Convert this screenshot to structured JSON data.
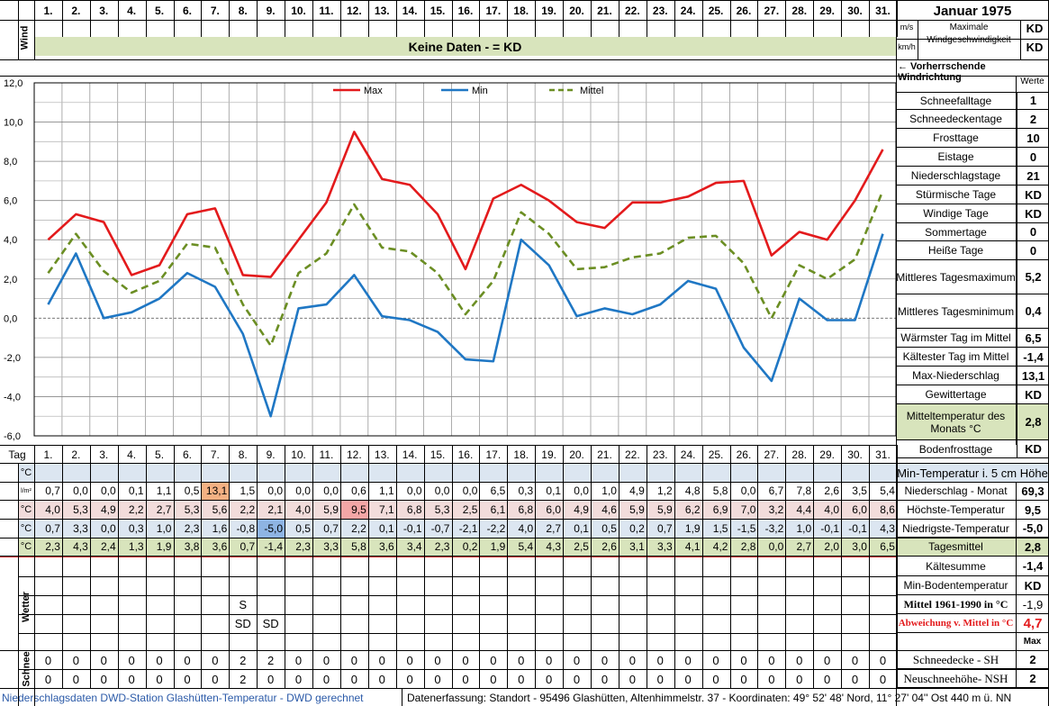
{
  "header": {
    "month_title": "Januar 1975",
    "days": [
      "1.",
      "2.",
      "3.",
      "4.",
      "5.",
      "6.",
      "7.",
      "8.",
      "9.",
      "10.",
      "11.",
      "12.",
      "13.",
      "14.",
      "15.",
      "16.",
      "17.",
      "18.",
      "19.",
      "20.",
      "21.",
      "22.",
      "23.",
      "24.",
      "25.",
      "26.",
      "27.",
      "28.",
      "29.",
      "30.",
      "31."
    ],
    "wind_label": "Wind",
    "unit_ms": "m/s",
    "unit_kmh": "km/h",
    "max_wind_label": "Maximale Windgeschwindigkeit",
    "max_wind_ms": "KD",
    "max_wind_kmh": "KD",
    "no_data_banner": "Keine Daten -  = KD",
    "prevailing_wind": "← Vorherrschende Windrichtung",
    "werte": "Werte"
  },
  "chart_data": {
    "type": "line",
    "x": [
      1,
      2,
      3,
      4,
      5,
      6,
      7,
      8,
      9,
      10,
      11,
      12,
      13,
      14,
      15,
      16,
      17,
      18,
      19,
      20,
      21,
      22,
      23,
      24,
      25,
      26,
      27,
      28,
      29,
      30,
      31
    ],
    "series": [
      {
        "name": "Max",
        "color": "#e31a1c",
        "dash": false,
        "values": [
          4.0,
          5.3,
          4.9,
          2.2,
          2.7,
          5.3,
          5.6,
          2.2,
          2.1,
          4.0,
          5.9,
          9.5,
          7.1,
          6.8,
          5.3,
          2.5,
          6.1,
          6.8,
          6.0,
          4.9,
          4.6,
          5.9,
          5.9,
          6.2,
          6.9,
          7.0,
          3.2,
          4.4,
          4.0,
          6.0,
          8.6
        ]
      },
      {
        "name": "Min",
        "color": "#1f77c4",
        "dash": false,
        "values": [
          0.7,
          3.3,
          0.0,
          0.3,
          1.0,
          2.3,
          1.6,
          -0.8,
          -5.0,
          0.5,
          0.7,
          2.2,
          0.1,
          -0.1,
          -0.7,
          -2.1,
          -2.2,
          4.0,
          2.7,
          0.1,
          0.5,
          0.2,
          0.7,
          1.9,
          1.5,
          -1.5,
          -3.2,
          1.0,
          -0.1,
          -0.1,
          4.3
        ]
      },
      {
        "name": "Mittel",
        "color": "#6b8e23",
        "dash": true,
        "values": [
          2.3,
          4.3,
          2.4,
          1.3,
          1.9,
          3.8,
          3.6,
          0.7,
          -1.4,
          2.3,
          3.3,
          5.8,
          3.6,
          3.4,
          2.3,
          0.2,
          1.9,
          5.4,
          4.3,
          2.5,
          2.6,
          3.1,
          3.3,
          4.1,
          4.2,
          2.8,
          0.0,
          2.7,
          2.0,
          3.0,
          6.5
        ]
      }
    ],
    "ylim": [
      -6,
      12
    ],
    "yticks": [
      "12,0",
      "10,0",
      "8,0",
      "6,0",
      "4,0",
      "2,0",
      "0,0",
      "-2,0",
      "-4,0",
      "-6,0"
    ],
    "grid": true,
    "legend": "top-center"
  },
  "table": {
    "tag_label": "Tag",
    "units": [
      "°C",
      "l/m²",
      "°C",
      "°C",
      "°C"
    ],
    "rows": {
      "niederschlag": [
        "0,7",
        "0,0",
        "0,0",
        "0,1",
        "1,1",
        "0,5",
        "13,1",
        "1,5",
        "0,0",
        "0,0",
        "0,0",
        "0,6",
        "1,1",
        "0,0",
        "0,0",
        "0,0",
        "6,5",
        "0,3",
        "0,1",
        "0,0",
        "1,0",
        "4,9",
        "1,2",
        "4,8",
        "5,8",
        "0,0",
        "6,7",
        "7,8",
        "2,6",
        "3,5",
        "5,4"
      ],
      "max": [
        "4,0",
        "5,3",
        "4,9",
        "2,2",
        "2,7",
        "5,3",
        "5,6",
        "2,2",
        "2,1",
        "4,0",
        "5,9",
        "9,5",
        "7,1",
        "6,8",
        "5,3",
        "2,5",
        "6,1",
        "6,8",
        "6,0",
        "4,9",
        "4,6",
        "5,9",
        "5,9",
        "6,2",
        "6,9",
        "7,0",
        "3,2",
        "4,4",
        "4,0",
        "6,0",
        "8,6"
      ],
      "min": [
        "0,7",
        "3,3",
        "0,0",
        "0,3",
        "1,0",
        "2,3",
        "1,6",
        "-0,8",
        "-5,0",
        "0,5",
        "0,7",
        "2,2",
        "0,1",
        "-0,1",
        "-0,7",
        "-2,1",
        "-2,2",
        "4,0",
        "2,7",
        "0,1",
        "0,5",
        "0,2",
        "0,7",
        "1,9",
        "1,5",
        "-1,5",
        "-3,2",
        "1,0",
        "-0,1",
        "-0,1",
        "4,3"
      ],
      "mittel": [
        "2,3",
        "4,3",
        "2,4",
        "1,3",
        "1,9",
        "3,8",
        "3,6",
        "0,7",
        "-1,4",
        "2,3",
        "3,3",
        "5,8",
        "3,6",
        "3,4",
        "2,3",
        "0,2",
        "1,9",
        "5,4",
        "4,3",
        "2,5",
        "2,6",
        "3,1",
        "3,3",
        "4,1",
        "4,2",
        "2,8",
        "0,0",
        "2,7",
        "2,0",
        "3,0",
        "6,5"
      ]
    },
    "wetter_label": "Wetter",
    "wetter_day8_a": "S",
    "wetter_day8_b": "SD",
    "wetter_day9_b": "SD",
    "schnee_label": "Schnee",
    "sh": [
      "0",
      "0",
      "0",
      "0",
      "0",
      "0",
      "0",
      "2",
      "2",
      "0",
      "0",
      "0",
      "0",
      "0",
      "0",
      "0",
      "0",
      "0",
      "0",
      "0",
      "0",
      "0",
      "0",
      "0",
      "0",
      "0",
      "0",
      "0",
      "0",
      "0",
      "0"
    ],
    "nsh": [
      "0",
      "0",
      "0",
      "0",
      "0",
      "0",
      "0",
      "2",
      "0",
      "0",
      "0",
      "0",
      "0",
      "0",
      "0",
      "0",
      "0",
      "0",
      "0",
      "0",
      "0",
      "0",
      "0",
      "0",
      "0",
      "0",
      "0",
      "0",
      "0",
      "0",
      "0"
    ]
  },
  "sidebar": {
    "items": [
      {
        "label": "Schneefalltage",
        "value": "1"
      },
      {
        "label": "Schneedeckentage",
        "value": "2"
      },
      {
        "label": "Frosttage",
        "value": "10"
      },
      {
        "label": "Eistage",
        "value": "0"
      },
      {
        "label": "Niederschlagstage",
        "value": "21"
      },
      {
        "label": "Stürmische Tage",
        "value": "KD"
      },
      {
        "label": "Windige Tage",
        "value": "KD"
      },
      {
        "label": "Sommertage",
        "value": "0"
      },
      {
        "label": "Heiße Tage",
        "value": "0"
      },
      {
        "label": "Mittleres Tagesmaximum",
        "value": "5,2"
      },
      {
        "label": "Mittleres Tagesminimum",
        "value": "0,4"
      },
      {
        "label": "Wärmster Tag im Mittel",
        "value": "6,5"
      },
      {
        "label": "Kältester Tag im Mittel",
        "value": "-1,4"
      },
      {
        "label": "Max-Niederschlag",
        "value": "13,1"
      },
      {
        "label": "Gewittertage",
        "value": "KD"
      },
      {
        "label": "Mitteltemperatur des Monats °C",
        "value": "2,8"
      },
      {
        "label": "Bodenfrosttage",
        "value": "KD"
      }
    ],
    "min5cm_label": "Min-Temperatur i. 5 cm Höhe",
    "lower": [
      {
        "label": "Niederschlag - Monat",
        "value": "69,3"
      },
      {
        "label": "Höchste-Temperatur",
        "value": "9,5"
      },
      {
        "label": "Niedrigste-Temperatur",
        "value": "-5,0"
      },
      {
        "label": "Tagesmittel",
        "value": "2,8"
      },
      {
        "label": "Kältesumme",
        "value": "-1,4"
      },
      {
        "label": "Min-Bodentemperatur",
        "value": "KD"
      },
      {
        "label": "Mittel 1961-1990 in °C",
        "value": "-1,9"
      },
      {
        "label": "Abweichung v. Mittel in °C",
        "value": "4,7"
      }
    ],
    "max_label": "Max",
    "sh_label": "Schneedecke -   SH",
    "sh_value": "2",
    "nsh_label": "Neuschneehöhe- NSH",
    "nsh_value": "2"
  },
  "footer": {
    "left": "Niederschlagsdaten DWD-Station Glashütten-Temperatur -  DWD gerechnet",
    "right": "Datenerfassung: Standort -  95496  Glashütten, Altenhimmelstr. 37 - Koordinaten: 49° 52' 48' Nord,  11° 27' 04'' Ost  440 m ü. NN"
  },
  "colors": {
    "green_band": "#d8e4bc",
    "blue_band": "#dce6f1",
    "pink_band": "#f2dcdb",
    "orange_hl": "#f4b183",
    "max_red": "#e31a1c",
    "min_blue": "#1f77c4",
    "mittel_green": "#6b8e23"
  }
}
